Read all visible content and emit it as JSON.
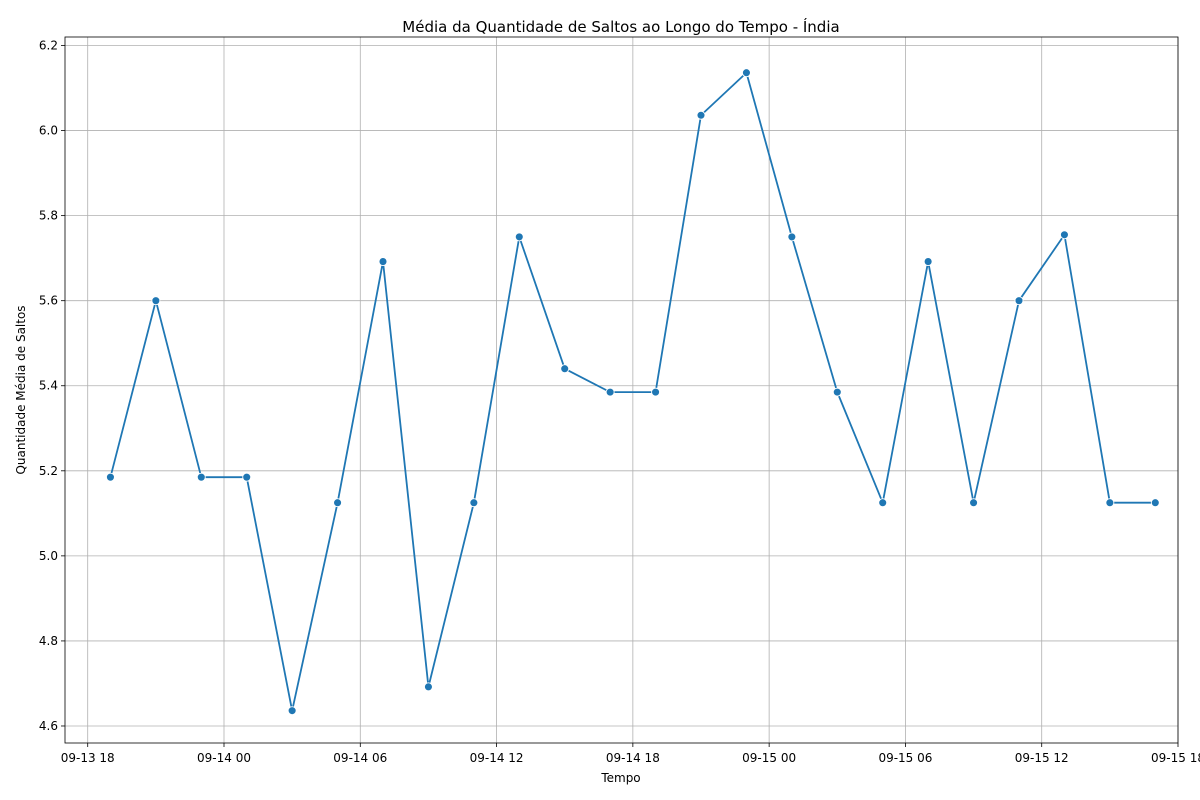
{
  "chart_data": {
    "type": "line",
    "title": "Média da Quantidade de Saltos ao Longo do Tempo - Índia",
    "xlabel": "Tempo",
    "ylabel": "Quantidade Média de Saltos",
    "x_axis": "datetime",
    "xlim": [
      "2023-09-13 17:00",
      "2023-09-15 18:00"
    ],
    "ylim": [
      4.56,
      6.22
    ],
    "x_ticks": [
      {
        "value": "2023-09-13 18:00",
        "label": "09-13 18"
      },
      {
        "value": "2023-09-14 00:00",
        "label": "09-14 00"
      },
      {
        "value": "2023-09-14 06:00",
        "label": "09-14 06"
      },
      {
        "value": "2023-09-14 12:00",
        "label": "09-14 12"
      },
      {
        "value": "2023-09-14 18:00",
        "label": "09-14 18"
      },
      {
        "value": "2023-09-15 00:00",
        "label": "09-15 00"
      },
      {
        "value": "2023-09-15 06:00",
        "label": "09-15 06"
      },
      {
        "value": "2023-09-15 12:00",
        "label": "09-15 12"
      },
      {
        "value": "2023-09-15 18:00",
        "label": "09-15 18"
      }
    ],
    "y_ticks": [
      4.6,
      4.8,
      5.0,
      5.2,
      5.4,
      5.6,
      5.8,
      6.0,
      6.2
    ],
    "y_tick_labels": [
      "4.6",
      "4.8",
      "5.0",
      "5.2",
      "5.4",
      "5.6",
      "5.8",
      "6.0",
      "6.2"
    ],
    "grid": true,
    "color": "#1f77b4",
    "series": [
      {
        "x": [
          "2023-09-13 19:00",
          "2023-09-13 21:00",
          "2023-09-13 23:00",
          "2023-09-14 01:00",
          "2023-09-14 03:00",
          "2023-09-14 05:00",
          "2023-09-14 07:00",
          "2023-09-14 09:00",
          "2023-09-14 11:00",
          "2023-09-14 13:00",
          "2023-09-14 15:00",
          "2023-09-14 17:00",
          "2023-09-14 19:00",
          "2023-09-14 21:00",
          "2023-09-14 23:00",
          "2023-09-15 01:00",
          "2023-09-15 03:00",
          "2023-09-15 05:00",
          "2023-09-15 07:00",
          "2023-09-15 09:00",
          "2023-09-15 11:00",
          "2023-09-15 13:00",
          "2023-09-15 15:00",
          "2023-09-15 17:00"
        ],
        "y": [
          5.185,
          5.6,
          5.185,
          5.185,
          4.636,
          5.125,
          5.692,
          4.692,
          5.125,
          5.75,
          5.44,
          5.385,
          5.385,
          6.036,
          6.136,
          5.75,
          5.385,
          5.125,
          5.692,
          5.125,
          5.6,
          5.755,
          5.125,
          5.125
        ]
      }
    ]
  }
}
